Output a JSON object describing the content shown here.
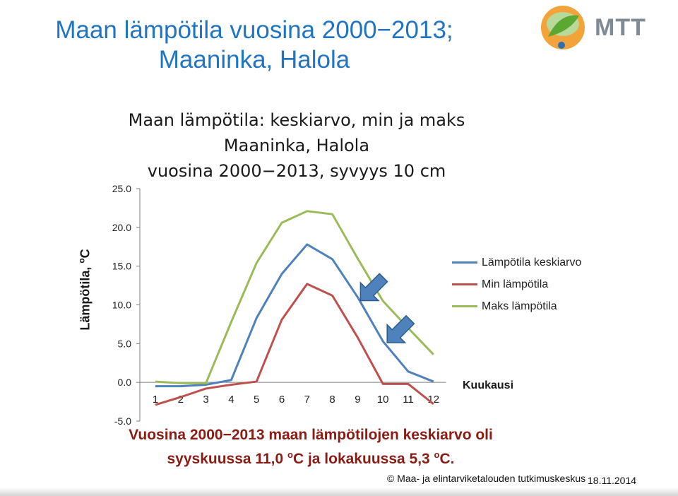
{
  "slide": {
    "title_line1": "Maan lämpötila vuosina 2000−2013;",
    "title_line2": "Maaninka, Halola",
    "logo_text": "MTT",
    "note_line1": "Vuosina 2000−2013 maan lämpötilojen keskiarvo oli",
    "note_line2_pre": "syyskuussa 11,0 ",
    "note_sup1": "o",
    "note_line2_mid": "C ja lokakuussa 5,3 ",
    "note_sup2": "o",
    "note_line2_end": "C.",
    "footer": "© Maa- ja elintarviketalouden tutkimuskeskus",
    "date": "18.11.2014"
  },
  "chart_data": {
    "type": "line",
    "title_line1": "Maan lämpötila: keskiarvo, min ja maks",
    "title_line2": "Maaninka, Halola",
    "title_line3": "vuosina 2000−2013,  syvyys 10 cm",
    "ylabel_main": "Lämpötila, ",
    "ylabel_sup": "o",
    "ylabel_unit": "C",
    "xlabel": "Kuukausi",
    "ylim": [
      -5,
      25
    ],
    "yticks": [
      "25.0",
      "20.0",
      "15.0",
      "10.0",
      "5.0",
      "0.0",
      "-5.0"
    ],
    "x": [
      "1",
      "2",
      "3",
      "4",
      "5",
      "6",
      "7",
      "8",
      "9",
      "10",
      "11",
      "12"
    ],
    "legend_position": "right",
    "grid": false,
    "series": [
      {
        "name": "Lämpötila keskiarvo",
        "color": "#4f81bd",
        "values": [
          -0.5,
          -0.5,
          -0.3,
          0.3,
          8.3,
          14.0,
          17.8,
          15.9,
          11.0,
          5.3,
          1.4,
          0.1
        ]
      },
      {
        "name": "Min lämpötila",
        "color": "#c0504d",
        "values": [
          -2.9,
          -1.9,
          -0.8,
          -0.3,
          0.1,
          8.1,
          12.7,
          11.2,
          5.8,
          -0.2,
          -0.2,
          -2.8
        ]
      },
      {
        "name": "Maks lämpötila",
        "color": "#9bbb59",
        "values": [
          0.1,
          -0.1,
          -0.1,
          7.8,
          15.4,
          20.6,
          22.1,
          21.7,
          16.0,
          10.5,
          7.0,
          3.6
        ]
      }
    ],
    "arrows_color": "#4f81bd"
  }
}
